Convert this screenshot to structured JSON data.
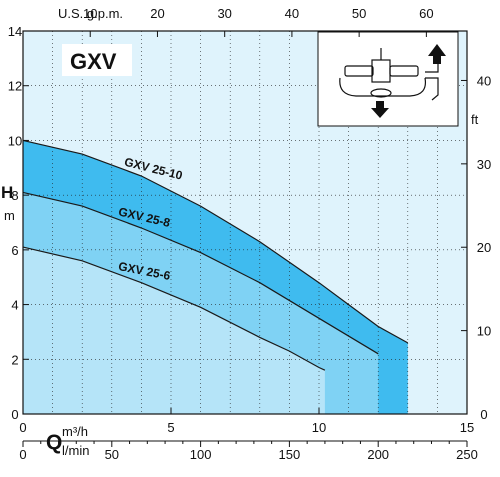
{
  "chart_data": {
    "type": "area",
    "title": "GXV",
    "y_axis_left": {
      "label": "H",
      "unit": "m",
      "range": [
        0,
        14
      ],
      "ticks": [
        "0",
        "2",
        "4",
        "6",
        "8",
        "10",
        "12",
        "14"
      ]
    },
    "y_axis_right": {
      "unit": "ft",
      "range_m": [
        0,
        14
      ],
      "ticks": [
        "0",
        "10",
        "20",
        "30",
        "40"
      ]
    },
    "x_axis_bottom": {
      "label": "Q",
      "unit": "m³/h",
      "range": [
        0,
        15
      ],
      "ticks": [
        "0",
        "5",
        "10",
        "15"
      ]
    },
    "x_axis_bottom2": {
      "unit": "l/min",
      "range": [
        0,
        250
      ],
      "ticks": [
        "0",
        "50",
        "100",
        "150",
        "200",
        "250"
      ]
    },
    "x_axis_top": {
      "unit": "U.S. g.p.m.",
      "range": [
        0,
        66
      ],
      "ticks": [
        "0",
        "10",
        "20",
        "30",
        "40",
        "50",
        "60"
      ]
    },
    "grid": true,
    "series": [
      {
        "name": "GXV 25-10",
        "color": "#3fbbef",
        "points": [
          [
            0,
            10
          ],
          [
            2,
            9.5
          ],
          [
            4,
            8.7
          ],
          [
            6,
            7.6
          ],
          [
            8,
            6.3
          ],
          [
            10,
            4.8
          ],
          [
            11,
            4.0
          ],
          [
            12,
            3.2
          ],
          [
            13,
            2.6
          ]
        ]
      },
      {
        "name": "GXV 25-8",
        "color": "#7fd2f4",
        "points": [
          [
            0,
            8.1
          ],
          [
            2,
            7.6
          ],
          [
            4,
            6.8
          ],
          [
            6,
            5.9
          ],
          [
            8,
            4.8
          ],
          [
            10,
            3.5
          ],
          [
            12,
            2.2
          ]
        ]
      },
      {
        "name": "GXV 25-6",
        "color": "#b5e4f8",
        "points": [
          [
            0,
            6.1
          ],
          [
            2,
            5.6
          ],
          [
            4,
            4.8
          ],
          [
            6,
            3.9
          ],
          [
            8,
            2.8
          ],
          [
            9,
            2.3
          ],
          [
            10,
            1.7
          ],
          [
            10.2,
            1.6
          ]
        ]
      }
    ],
    "operating_limits": [
      {
        "name": "GXV 25-10",
        "q_max": 13
      },
      {
        "name": "GXV 25-8",
        "q_max": 12
      },
      {
        "name": "GXV 25-6",
        "q_max": 10.2
      }
    ],
    "colors": {
      "background_fill": "#dff3fc",
      "grid": "#222222"
    },
    "inset_icon": "pump-cross-section-diagram"
  }
}
